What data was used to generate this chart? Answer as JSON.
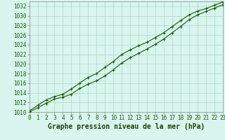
{
  "title": "Graphe pression niveau de la mer (hPa)",
  "hours": [
    0,
    1,
    2,
    3,
    4,
    5,
    6,
    7,
    8,
    9,
    10,
    11,
    12,
    13,
    14,
    15,
    16,
    17,
    18,
    19,
    20,
    21,
    22,
    23
  ],
  "series1": [
    1010.0,
    1010.9,
    1011.8,
    1012.7,
    1013.1,
    1013.7,
    1014.9,
    1015.8,
    1016.5,
    1017.5,
    1018.8,
    1020.2,
    1021.3,
    1022.2,
    1023.1,
    1024.1,
    1025.2,
    1026.5,
    1027.8,
    1029.2,
    1030.2,
    1030.9,
    1031.6,
    1032.3
  ],
  "series2": [
    1010.2,
    1011.4,
    1012.5,
    1013.2,
    1013.7,
    1014.8,
    1016.0,
    1017.2,
    1018.0,
    1019.3,
    1020.5,
    1022.0,
    1022.9,
    1023.8,
    1024.5,
    1025.5,
    1026.5,
    1027.8,
    1029.0,
    1030.2,
    1031.0,
    1031.5,
    1032.2,
    1032.9
  ],
  "ylim_min": 1010,
  "ylim_max": 1033,
  "yticks": [
    1010,
    1012,
    1014,
    1016,
    1018,
    1020,
    1022,
    1024,
    1026,
    1028,
    1030,
    1032
  ],
  "line_color": "#1a5c00",
  "marker": "+",
  "marker_size": 3.5,
  "marker_lw": 0.8,
  "linewidth": 0.8,
  "background_color": "#d8f5ee",
  "plot_bg_color": "#d8f5ee",
  "grid_color": "#b0d9c8",
  "grid_linewidth": 0.5,
  "axis_color": "#888888",
  "tick_color": "#1a5c00",
  "tick_fontsize": 5.5,
  "xlabel_fontsize": 7.0,
  "xlabel_color": "#1a4400",
  "xlabel_fontweight": "bold"
}
